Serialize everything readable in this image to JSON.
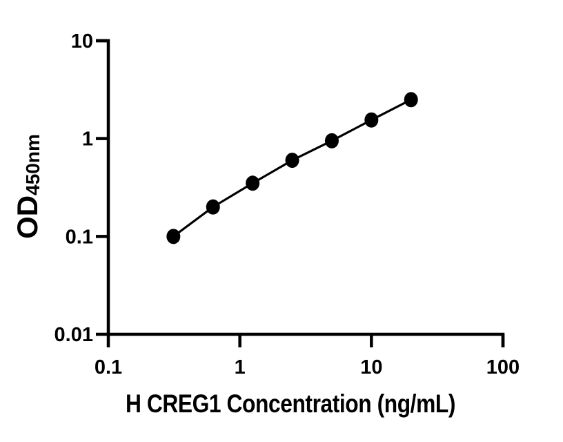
{
  "figure": {
    "background": "#ffffff",
    "ink": "#000000"
  },
  "chart_data": {
    "type": "scatter",
    "connect": "line",
    "xlabel": "H CREG1 Concentration (ng/mL)",
    "ylabel_main": "OD",
    "ylabel_sub": "450nm",
    "x_scale": "log",
    "y_scale": "log",
    "xlim": [
      0.1,
      100
    ],
    "ylim": [
      0.01,
      10
    ],
    "grid": false,
    "legend": null,
    "axis_color": "#000000",
    "x_ticks": [
      {
        "v": 0.1,
        "label": "0.1"
      },
      {
        "v": 1,
        "label": "1"
      },
      {
        "v": 10,
        "label": "10"
      },
      {
        "v": 100,
        "label": "100"
      }
    ],
    "y_ticks": [
      {
        "v": 10,
        "label": "10"
      },
      {
        "v": 1,
        "label": "1"
      },
      {
        "v": 0.1,
        "label": "0.1"
      },
      {
        "v": 0.01,
        "label": "0.01"
      }
    ],
    "series": [
      {
        "marker": "filled-circle",
        "color": "#000000",
        "points": [
          {
            "x": 0.3125,
            "y": 0.1
          },
          {
            "x": 0.625,
            "y": 0.2
          },
          {
            "x": 1.25,
            "y": 0.35
          },
          {
            "x": 2.5,
            "y": 0.6
          },
          {
            "x": 5,
            "y": 0.95
          },
          {
            "x": 10,
            "y": 1.55
          },
          {
            "x": 20,
            "y": 2.5
          }
        ]
      }
    ]
  }
}
